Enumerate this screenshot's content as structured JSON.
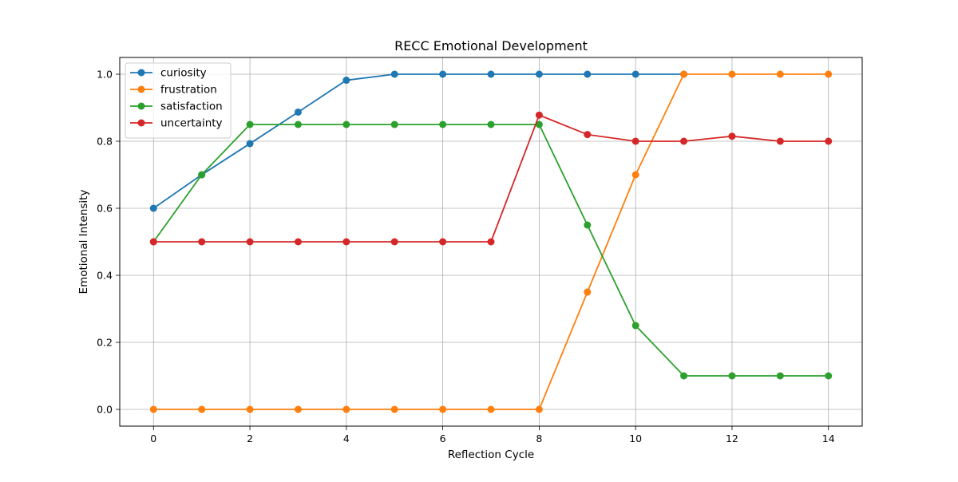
{
  "chart_data": {
    "type": "line",
    "title": "RECC Emotional Development",
    "xlabel": "Reflection Cycle",
    "ylabel": "Emotional Intensity",
    "x": [
      0,
      1,
      2,
      3,
      4,
      5,
      6,
      7,
      8,
      9,
      10,
      11,
      12,
      13,
      14
    ],
    "xlim": [
      -0.7,
      14.7
    ],
    "ylim": [
      -0.05,
      1.05
    ],
    "xticks": [
      0,
      2,
      4,
      6,
      8,
      10,
      12,
      14
    ],
    "yticks": [
      0.0,
      0.2,
      0.4,
      0.6,
      0.8,
      1.0
    ],
    "xtick_labels": [
      "0",
      "2",
      "4",
      "6",
      "8",
      "10",
      "12",
      "14"
    ],
    "ytick_labels": [
      "0.0",
      "0.2",
      "0.4",
      "0.6",
      "0.8",
      "1.0"
    ],
    "grid": true,
    "legend_position": "top-left",
    "series": [
      {
        "name": "curiosity",
        "color": "#1f77b4",
        "values": [
          0.6,
          0.7,
          0.793,
          0.887,
          0.982,
          1.0,
          1.0,
          1.0,
          1.0,
          1.0,
          1.0,
          1.0,
          null,
          null,
          null
        ]
      },
      {
        "name": "frustration",
        "color": "#ff7f0e",
        "values": [
          0.0,
          0.0,
          0.0,
          0.0,
          0.0,
          0.0,
          0.0,
          0.0,
          0.0,
          0.35,
          0.7,
          1.0,
          1.0,
          1.0,
          1.0
        ]
      },
      {
        "name": "satisfaction",
        "color": "#2ca02c",
        "values": [
          0.5,
          0.7,
          0.85,
          0.85,
          0.85,
          0.85,
          0.85,
          0.85,
          0.85,
          0.55,
          0.25,
          0.1,
          0.1,
          0.1,
          0.1
        ]
      },
      {
        "name": "uncertainty",
        "color": "#d62728",
        "values": [
          0.5,
          0.5,
          0.5,
          0.5,
          0.5,
          0.5,
          0.5,
          0.5,
          0.878,
          0.82,
          0.8,
          0.8,
          0.815,
          0.8,
          0.8
        ]
      }
    ]
  }
}
